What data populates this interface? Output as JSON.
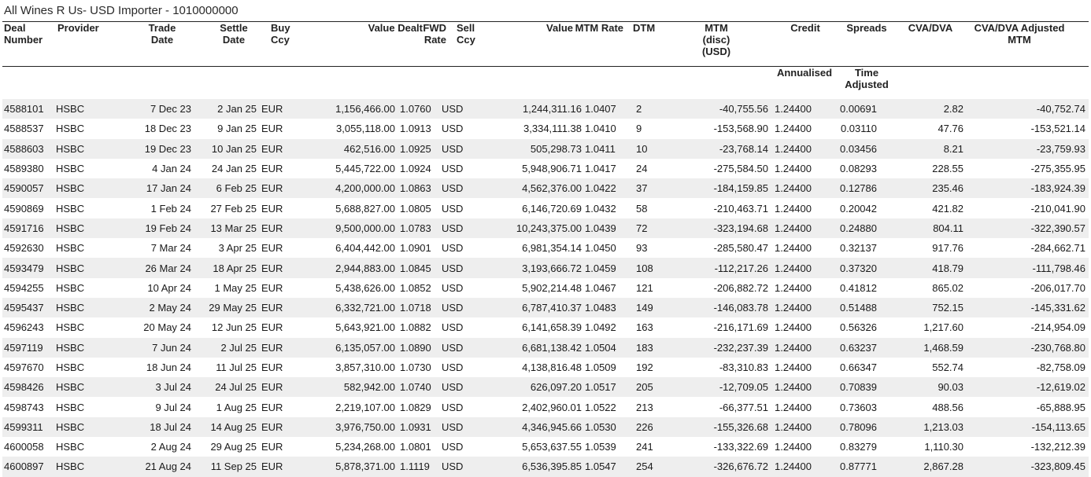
{
  "report": {
    "title": "All Wines R Us- USD Importer - 1010000000"
  },
  "columns": {
    "deal_number": [
      "Deal",
      "Number"
    ],
    "provider": [
      "Provider"
    ],
    "trade_date": [
      "Trade",
      "Date"
    ],
    "settle_date": [
      "Settle",
      "Date"
    ],
    "buy_ccy": [
      "Buy",
      "Ccy"
    ],
    "value_dealt": [
      "Value Dealt"
    ],
    "fwd_rate": [
      "FWD",
      "Rate"
    ],
    "sell_ccy": [
      "Sell",
      "Ccy"
    ],
    "value": [
      "Value"
    ],
    "mtm_rate": [
      "MTM Rate"
    ],
    "dtm": [
      "DTM"
    ],
    "mtm_disc": [
      "MTM",
      "(disc)",
      "(USD)"
    ],
    "credit": [
      "Credit"
    ],
    "credit_sub": [
      "Annualised"
    ],
    "spreads": [
      "Spreads"
    ],
    "spreads_sub": [
      "Time",
      "Adjusted"
    ],
    "cva_dva": [
      "CVA/DVA"
    ],
    "cva_adjusted": [
      "CVA/DVA Adjusted",
      "MTM"
    ]
  },
  "rows": [
    {
      "deal": "4588101",
      "provider": "HSBC",
      "trade": "7 Dec 23",
      "settle": "2 Jan 25",
      "buy": "EUR",
      "dealt": "1,156,466.00",
      "fwd": "1.0760",
      "sell": "USD",
      "value": "1,244,311.16",
      "mtm_rate": "1.0407",
      "dtm": "2",
      "mtm": "-40,755.56",
      "credit": "1.24400",
      "spreads": "0.00691",
      "cva": "2.82",
      "adj": "-40,752.74"
    },
    {
      "deal": "4588537",
      "provider": "HSBC",
      "trade": "18 Dec 23",
      "settle": "9 Jan 25",
      "buy": "EUR",
      "dealt": "3,055,118.00",
      "fwd": "1.0913",
      "sell": "USD",
      "value": "3,334,111.38",
      "mtm_rate": "1.0410",
      "dtm": "9",
      "mtm": "-153,568.90",
      "credit": "1.24400",
      "spreads": "0.03110",
      "cva": "47.76",
      "adj": "-153,521.14"
    },
    {
      "deal": "4588603",
      "provider": "HSBC",
      "trade": "19 Dec 23",
      "settle": "10 Jan 25",
      "buy": "EUR",
      "dealt": "462,516.00",
      "fwd": "1.0925",
      "sell": "USD",
      "value": "505,298.73",
      "mtm_rate": "1.0411",
      "dtm": "10",
      "mtm": "-23,768.14",
      "credit": "1.24400",
      "spreads": "0.03456",
      "cva": "8.21",
      "adj": "-23,759.93"
    },
    {
      "deal": "4589380",
      "provider": "HSBC",
      "trade": "4 Jan 24",
      "settle": "24 Jan 25",
      "buy": "EUR",
      "dealt": "5,445,722.00",
      "fwd": "1.0924",
      "sell": "USD",
      "value": "5,948,906.71",
      "mtm_rate": "1.0417",
      "dtm": "24",
      "mtm": "-275,584.50",
      "credit": "1.24400",
      "spreads": "0.08293",
      "cva": "228.55",
      "adj": "-275,355.95"
    },
    {
      "deal": "4590057",
      "provider": "HSBC",
      "trade": "17 Jan 24",
      "settle": "6 Feb 25",
      "buy": "EUR",
      "dealt": "4,200,000.00",
      "fwd": "1.0863",
      "sell": "USD",
      "value": "4,562,376.00",
      "mtm_rate": "1.0422",
      "dtm": "37",
      "mtm": "-184,159.85",
      "credit": "1.24400",
      "spreads": "0.12786",
      "cva": "235.46",
      "adj": "-183,924.39"
    },
    {
      "deal": "4590869",
      "provider": "HSBC",
      "trade": "1 Feb 24",
      "settle": "27 Feb 25",
      "buy": "EUR",
      "dealt": "5,688,827.00",
      "fwd": "1.0805",
      "sell": "USD",
      "value": "6,146,720.69",
      "mtm_rate": "1.0432",
      "dtm": "58",
      "mtm": "-210,463.71",
      "credit": "1.24400",
      "spreads": "0.20042",
      "cva": "421.82",
      "adj": "-210,041.90"
    },
    {
      "deal": "4591716",
      "provider": "HSBC",
      "trade": "19 Feb 24",
      "settle": "13 Mar 25",
      "buy": "EUR",
      "dealt": "9,500,000.00",
      "fwd": "1.0783",
      "sell": "USD",
      "value": "10,243,375.00",
      "mtm_rate": "1.0439",
      "dtm": "72",
      "mtm": "-323,194.68",
      "credit": "1.24400",
      "spreads": "0.24880",
      "cva": "804.11",
      "adj": "-322,390.57"
    },
    {
      "deal": "4592630",
      "provider": "HSBC",
      "trade": "7 Mar 24",
      "settle": "3 Apr 25",
      "buy": "EUR",
      "dealt": "6,404,442.00",
      "fwd": "1.0901",
      "sell": "USD",
      "value": "6,981,354.14",
      "mtm_rate": "1.0450",
      "dtm": "93",
      "mtm": "-285,580.47",
      "credit": "1.24400",
      "spreads": "0.32137",
      "cva": "917.76",
      "adj": "-284,662.71"
    },
    {
      "deal": "4593479",
      "provider": "HSBC",
      "trade": "26 Mar 24",
      "settle": "18 Apr 25",
      "buy": "EUR",
      "dealt": "2,944,883.00",
      "fwd": "1.0845",
      "sell": "USD",
      "value": "3,193,666.72",
      "mtm_rate": "1.0459",
      "dtm": "108",
      "mtm": "-112,217.26",
      "credit": "1.24400",
      "spreads": "0.37320",
      "cva": "418.79",
      "adj": "-111,798.46"
    },
    {
      "deal": "4594255",
      "provider": "HSBC",
      "trade": "10 Apr 24",
      "settle": "1 May 25",
      "buy": "EUR",
      "dealt": "5,438,626.00",
      "fwd": "1.0852",
      "sell": "USD",
      "value": "5,902,214.48",
      "mtm_rate": "1.0467",
      "dtm": "121",
      "mtm": "-206,882.72",
      "credit": "1.24400",
      "spreads": "0.41812",
      "cva": "865.02",
      "adj": "-206,017.70"
    },
    {
      "deal": "4595437",
      "provider": "HSBC",
      "trade": "2 May 24",
      "settle": "29 May 25",
      "buy": "EUR",
      "dealt": "6,332,721.00",
      "fwd": "1.0718",
      "sell": "USD",
      "value": "6,787,410.37",
      "mtm_rate": "1.0483",
      "dtm": "149",
      "mtm": "-146,083.78",
      "credit": "1.24400",
      "spreads": "0.51488",
      "cva": "752.15",
      "adj": "-145,331.62"
    },
    {
      "deal": "4596243",
      "provider": "HSBC",
      "trade": "20 May 24",
      "settle": "12 Jun 25",
      "buy": "EUR",
      "dealt": "5,643,921.00",
      "fwd": "1.0882",
      "sell": "USD",
      "value": "6,141,658.39",
      "mtm_rate": "1.0492",
      "dtm": "163",
      "mtm": "-216,171.69",
      "credit": "1.24400",
      "spreads": "0.56326",
      "cva": "1,217.60",
      "adj": "-214,954.09"
    },
    {
      "deal": "4597119",
      "provider": "HSBC",
      "trade": "7 Jun 24",
      "settle": "2 Jul 25",
      "buy": "EUR",
      "dealt": "6,135,057.00",
      "fwd": "1.0890",
      "sell": "USD",
      "value": "6,681,138.42",
      "mtm_rate": "1.0504",
      "dtm": "183",
      "mtm": "-232,237.39",
      "credit": "1.24400",
      "spreads": "0.63237",
      "cva": "1,468.59",
      "adj": "-230,768.80"
    },
    {
      "deal": "4597670",
      "provider": "HSBC",
      "trade": "18 Jun 24",
      "settle": "11 Jul 25",
      "buy": "EUR",
      "dealt": "3,857,310.00",
      "fwd": "1.0730",
      "sell": "USD",
      "value": "4,138,816.48",
      "mtm_rate": "1.0509",
      "dtm": "192",
      "mtm": "-83,310.83",
      "credit": "1.24400",
      "spreads": "0.66347",
      "cva": "552.74",
      "adj": "-82,758.09"
    },
    {
      "deal": "4598426",
      "provider": "HSBC",
      "trade": "3 Jul 24",
      "settle": "24 Jul 25",
      "buy": "EUR",
      "dealt": "582,942.00",
      "fwd": "1.0740",
      "sell": "USD",
      "value": "626,097.20",
      "mtm_rate": "1.0517",
      "dtm": "205",
      "mtm": "-12,709.05",
      "credit": "1.24400",
      "spreads": "0.70839",
      "cva": "90.03",
      "adj": "-12,619.02"
    },
    {
      "deal": "4598743",
      "provider": "HSBC",
      "trade": "9 Jul 24",
      "settle": "1 Aug 25",
      "buy": "EUR",
      "dealt": "2,219,107.00",
      "fwd": "1.0829",
      "sell": "USD",
      "value": "2,402,960.01",
      "mtm_rate": "1.0522",
      "dtm": "213",
      "mtm": "-66,377.51",
      "credit": "1.24400",
      "spreads": "0.73603",
      "cva": "488.56",
      "adj": "-65,888.95"
    },
    {
      "deal": "4599311",
      "provider": "HSBC",
      "trade": "18 Jul 24",
      "settle": "14 Aug 25",
      "buy": "EUR",
      "dealt": "3,976,750.00",
      "fwd": "1.0931",
      "sell": "USD",
      "value": "4,346,945.66",
      "mtm_rate": "1.0530",
      "dtm": "226",
      "mtm": "-155,326.68",
      "credit": "1.24400",
      "spreads": "0.78096",
      "cva": "1,213.03",
      "adj": "-154,113.65"
    },
    {
      "deal": "4600058",
      "provider": "HSBC",
      "trade": "2 Aug 24",
      "settle": "29 Aug 25",
      "buy": "EUR",
      "dealt": "5,234,268.00",
      "fwd": "1.0801",
      "sell": "USD",
      "value": "5,653,637.55",
      "mtm_rate": "1.0539",
      "dtm": "241",
      "mtm": "-133,322.69",
      "credit": "1.24400",
      "spreads": "0.83279",
      "cva": "1,110.30",
      "adj": "-132,212.39"
    },
    {
      "deal": "4600897",
      "provider": "HSBC",
      "trade": "21 Aug 24",
      "settle": "11 Sep 25",
      "buy": "EUR",
      "dealt": "5,878,371.00",
      "fwd": "1.1119",
      "sell": "USD",
      "value": "6,536,395.85",
      "mtm_rate": "1.0547",
      "dtm": "254",
      "mtm": "-326,676.72",
      "credit": "1.24400",
      "spreads": "0.87771",
      "cva": "2,867.28",
      "adj": "-323,809.45"
    }
  ]
}
